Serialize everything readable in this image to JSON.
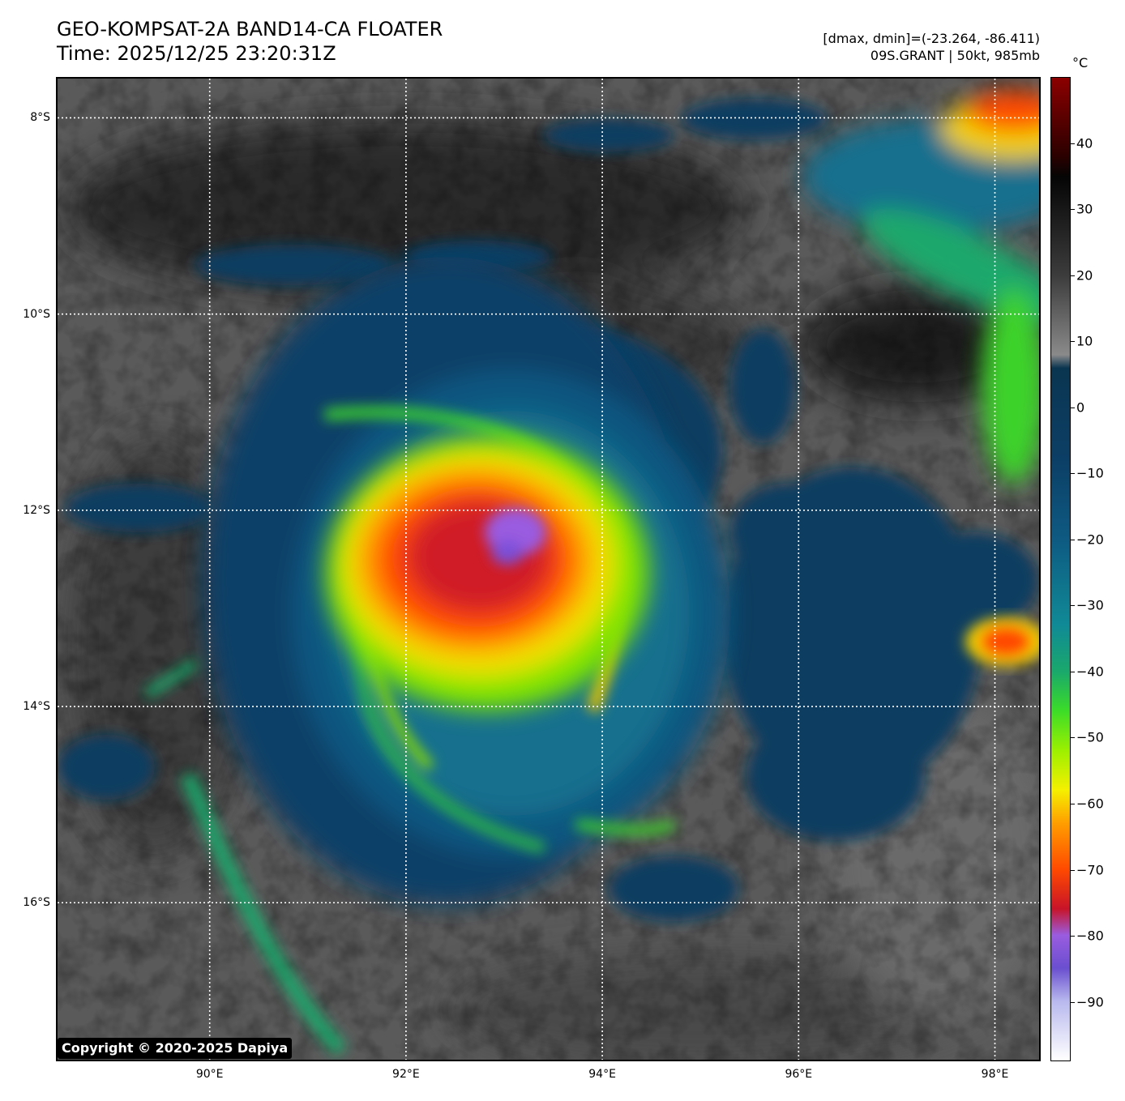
{
  "header": {
    "title_line1": "GEO-KOMPSAT-2A BAND14-CA FLOATER",
    "title_line2": "Time: 2025/12/25 23:20:31Z",
    "info_line1": "[dmax, dmin]=(-23.264, -86.411)",
    "info_line2": "09S.GRANT | 50kt, 985mb"
  },
  "colorbar": {
    "unit": "°C",
    "range": [
      -99,
      50
    ],
    "ticks": [
      {
        "value": 40,
        "label": "40"
      },
      {
        "value": 30,
        "label": "30"
      },
      {
        "value": 20,
        "label": "20"
      },
      {
        "value": 10,
        "label": "10"
      },
      {
        "value": 0,
        "label": "0"
      },
      {
        "value": -10,
        "label": "−10"
      },
      {
        "value": -20,
        "label": "−20"
      },
      {
        "value": -30,
        "label": "−30"
      },
      {
        "value": -40,
        "label": "−40"
      },
      {
        "value": -50,
        "label": "−50"
      },
      {
        "value": -60,
        "label": "−60"
      },
      {
        "value": -70,
        "label": "−70"
      },
      {
        "value": -80,
        "label": "−80"
      },
      {
        "value": -90,
        "label": "−90"
      }
    ],
    "stops": [
      {
        "value": -99,
        "color": "#ffffff"
      },
      {
        "value": -90,
        "color": "#b8b8ee"
      },
      {
        "value": -85,
        "color": "#6a4fcf"
      },
      {
        "value": -80,
        "color": "#9a5ce0"
      },
      {
        "value": -76,
        "color": "#c81428"
      },
      {
        "value": -70,
        "color": "#ff4a00"
      },
      {
        "value": -63,
        "color": "#ff9e00"
      },
      {
        "value": -58,
        "color": "#f5f000"
      },
      {
        "value": -52,
        "color": "#9cf000"
      },
      {
        "value": -46,
        "color": "#3cdc28"
      },
      {
        "value": -40,
        "color": "#1aa86c"
      },
      {
        "value": -33,
        "color": "#108a96"
      },
      {
        "value": -20,
        "color": "#0e5a82"
      },
      {
        "value": -8,
        "color": "#0c3f66"
      },
      {
        "value": 6,
        "color": "#0a3550"
      },
      {
        "value": 8,
        "color": "#8a8a8a"
      },
      {
        "value": 20,
        "color": "#3c3c3c"
      },
      {
        "value": 35,
        "color": "#050505"
      },
      {
        "value": 38,
        "color": "#2a0000"
      },
      {
        "value": 50,
        "color": "#8c0000"
      }
    ]
  },
  "map": {
    "lon_range": [
      88.45,
      98.45
    ],
    "lat_range": [
      -17.6,
      -7.6
    ],
    "lat_lines": [
      {
        "value": -8,
        "label": "8°S"
      },
      {
        "value": -10,
        "label": "10°S"
      },
      {
        "value": -12,
        "label": "12°S"
      },
      {
        "value": -14,
        "label": "14°S"
      },
      {
        "value": -16,
        "label": "16°S"
      }
    ],
    "lon_lines": [
      {
        "value": 90,
        "label": "90°E"
      },
      {
        "value": 92,
        "label": "92°E"
      },
      {
        "value": 94,
        "label": "94°E"
      },
      {
        "value": 96,
        "label": "96°E"
      },
      {
        "value": 98,
        "label": "98°E"
      }
    ]
  },
  "copyright": "Copyright © 2020-2025 Dapiya"
}
